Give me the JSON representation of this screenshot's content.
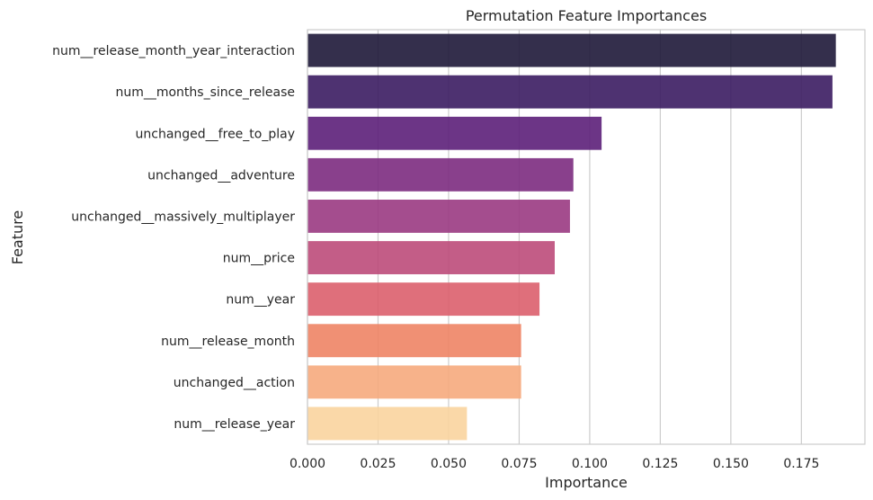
{
  "chart_data": {
    "type": "bar",
    "orientation": "horizontal",
    "title": "Permutation Feature Importances",
    "xlabel": "Importance",
    "ylabel": "Feature",
    "xlim": [
      0,
      0.1975
    ],
    "xticks": [
      0.0,
      0.025,
      0.05,
      0.075,
      0.1,
      0.125,
      0.15,
      0.175
    ],
    "xtick_labels": [
      "0.000",
      "0.025",
      "0.050",
      "0.075",
      "0.100",
      "0.125",
      "0.150",
      "0.175"
    ],
    "grid": "vertical",
    "categories": [
      "num__release_month_year_interaction",
      "num__months_since_release",
      "unchanged__free_to_play",
      "unchanged__adventure",
      "unchanged__massively_multiplayer",
      "num__price",
      "num__year",
      "num__release_month",
      "unchanged__action",
      "num__release_year"
    ],
    "values": [
      0.1872,
      0.186,
      0.1042,
      0.0942,
      0.093,
      0.0876,
      0.0822,
      0.0757,
      0.0757,
      0.0565
    ],
    "colors": [
      "#1e1838",
      "#3b1c62",
      "#5c1f79",
      "#7c2b80",
      "#9a3a82",
      "#bd4b7a",
      "#db5f6d",
      "#ee8465",
      "#f6aa7d",
      "#f9d49e"
    ]
  }
}
